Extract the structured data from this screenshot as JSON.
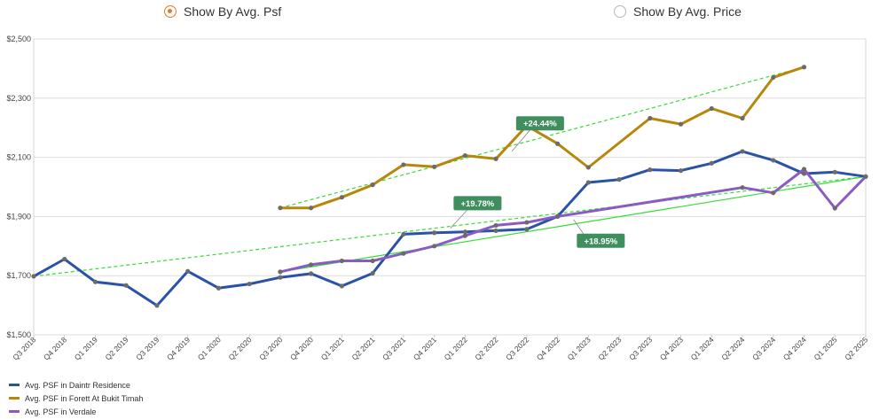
{
  "toggle": {
    "options": [
      {
        "label": "Show By Avg. Psf",
        "selected": true
      },
      {
        "label": "Show By Avg. Price",
        "selected": false
      }
    ]
  },
  "chart_data": {
    "type": "line",
    "x": [
      "Q3 2018",
      "Q4 2018",
      "Q1 2019",
      "Q2 2019",
      "Q3 2019",
      "Q4 2019",
      "Q1 2020",
      "Q2 2020",
      "Q3 2020",
      "Q4 2020",
      "Q1 2021",
      "Q2 2021",
      "Q3 2021",
      "Q4 2021",
      "Q1 2022",
      "Q2 2022",
      "Q3 2022",
      "Q4 2022",
      "Q1 2023",
      "Q2 2023",
      "Q3 2023",
      "Q4 2023",
      "Q1 2024",
      "Q2 2024",
      "Q3 2024",
      "Q4 2024",
      "Q1 2025",
      "Q2 2025"
    ],
    "ylim": [
      1500,
      2500
    ],
    "yticks": [
      1500,
      1700,
      1900,
      2100,
      2300,
      2500
    ],
    "ytick_labels": [
      "$1,500",
      "$1,700",
      "$1,900",
      "$2,100",
      "$2,300",
      "$2,500"
    ],
    "grid": true,
    "legend_position": "bottom-left",
    "series": [
      {
        "name": "Avg. PSF in Daintr Residence",
        "color": "#2a52a8",
        "values": [
          1698,
          1756,
          1679,
          1667,
          1599,
          1715,
          1658,
          1672,
          1694,
          1707,
          1665,
          1708,
          1840,
          1845,
          1848,
          1852,
          1857,
          1900,
          2015,
          2025,
          2058,
          2055,
          2080,
          2120,
          2090,
          2045,
          2050,
          2035
        ]
      },
      {
        "name": "Avg. PSF in Forett At Bukit Timah",
        "color": "#b8860b",
        "values": [
          null,
          null,
          null,
          null,
          null,
          null,
          null,
          null,
          1929,
          1929,
          1965,
          2007,
          2075,
          2068,
          2106,
          2095,
          2207,
          2146,
          2066,
          null,
          2232,
          2212,
          2265,
          2232,
          2370,
          2405,
          null,
          null
        ]
      },
      {
        "name": "Avg. PSF in Verdale",
        "color": "#8a5bc4",
        "values": [
          null,
          null,
          null,
          null,
          null,
          null,
          null,
          null,
          1713,
          1737,
          1750,
          1750,
          1775,
          1800,
          1835,
          1870,
          1880,
          1900,
          null,
          null,
          null,
          null,
          null,
          1998,
          1980,
          2060,
          1928,
          2035
        ]
      }
    ],
    "trendlines": [
      {
        "series": "Avg. PSF in Daintr Residence",
        "style": "dashed",
        "from": [
          "Q3 2018",
          1698
        ],
        "to": [
          "Q2 2025",
          2035
        ]
      },
      {
        "series": "Avg. PSF in Forett At Bukit Timah",
        "style": "dashed",
        "from": [
          "Q3 2020",
          1929
        ],
        "to": [
          "Q4 2024",
          2405
        ]
      },
      {
        "series": "Avg. PSF in Verdale",
        "style": "solid",
        "from": [
          "Q3 2020",
          1713
        ],
        "to": [
          "Q2 2025",
          2035
        ]
      }
    ],
    "annotations": [
      {
        "label": "+24.44%",
        "at": [
          "Q3 2022",
          2215
        ],
        "line_to": [
          "Q2 2022",
          2120
        ]
      },
      {
        "label": "+19.78%",
        "at": [
          "Q1 2022",
          1945
        ],
        "line_to": [
          "Q4 2021",
          1860
        ]
      },
      {
        "label": "+18.95%",
        "at": [
          "Q1 2023",
          1818
        ],
        "line_to": [
          "Q4 2022",
          1890
        ]
      }
    ]
  }
}
